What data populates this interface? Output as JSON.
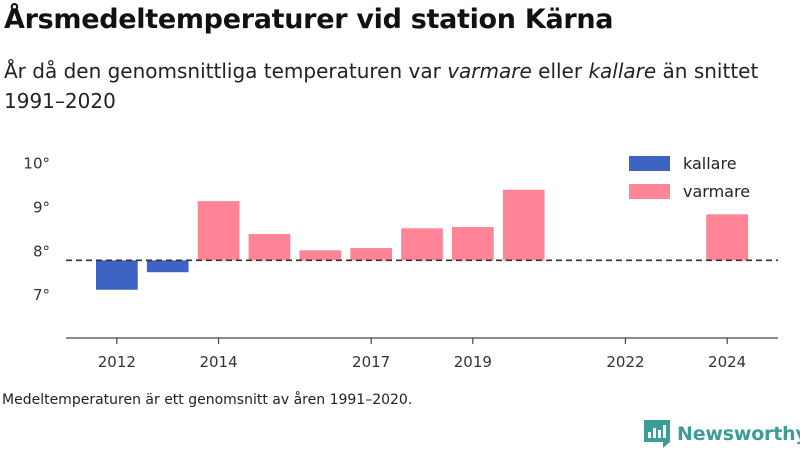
{
  "title": "Årsmedeltemperaturer vid station Kärna",
  "subtitle": {
    "part1": "År då den genomsnittliga temperaturen var ",
    "warm_word": "varmare",
    "part2": " eller ",
    "cold_word": "kallare",
    "part3": " än snittet 1991–2020"
  },
  "footnote": "Medeltemperaturen är ett genomsnitt av åren 1991–2020.",
  "brand": "Newsworthy",
  "colors": {
    "cold": "#3d63c4",
    "warm": "#ff8495",
    "reference_line": "#333333",
    "axis": "#444444",
    "brand": "#3d9c95"
  },
  "chart_data": {
    "type": "bar",
    "baseline": 7.77,
    "baseline_style": "dashed",
    "ylim": [
      6,
      10.4
    ],
    "yticks": [
      7,
      8,
      9,
      10
    ],
    "ytick_labels": [
      "7°",
      "8°",
      "9°",
      "10°"
    ],
    "xlim": [
      2011,
      2025
    ],
    "xticks": [
      2012,
      2014,
      2017,
      2019,
      2022,
      2024
    ],
    "xtick_labels": [
      "2012",
      "2014",
      "2017",
      "2019",
      "2022",
      "2024"
    ],
    "grid": false,
    "legend_position": "top-right",
    "series": [
      {
        "name": "kallare",
        "color": "#3d63c4",
        "points": [
          {
            "x": 2012,
            "y": 7.1
          },
          {
            "x": 2013,
            "y": 7.5
          }
        ]
      },
      {
        "name": "varmare",
        "color": "#ff8495",
        "points": [
          {
            "x": 2014,
            "y": 9.12
          },
          {
            "x": 2015,
            "y": 8.37
          },
          {
            "x": 2016,
            "y": 8.0
          },
          {
            "x": 2017,
            "y": 8.05
          },
          {
            "x": 2018,
            "y": 8.5
          },
          {
            "x": 2019,
            "y": 8.53
          },
          {
            "x": 2020,
            "y": 9.38
          },
          {
            "x": 2024,
            "y": 8.82
          }
        ]
      }
    ]
  }
}
